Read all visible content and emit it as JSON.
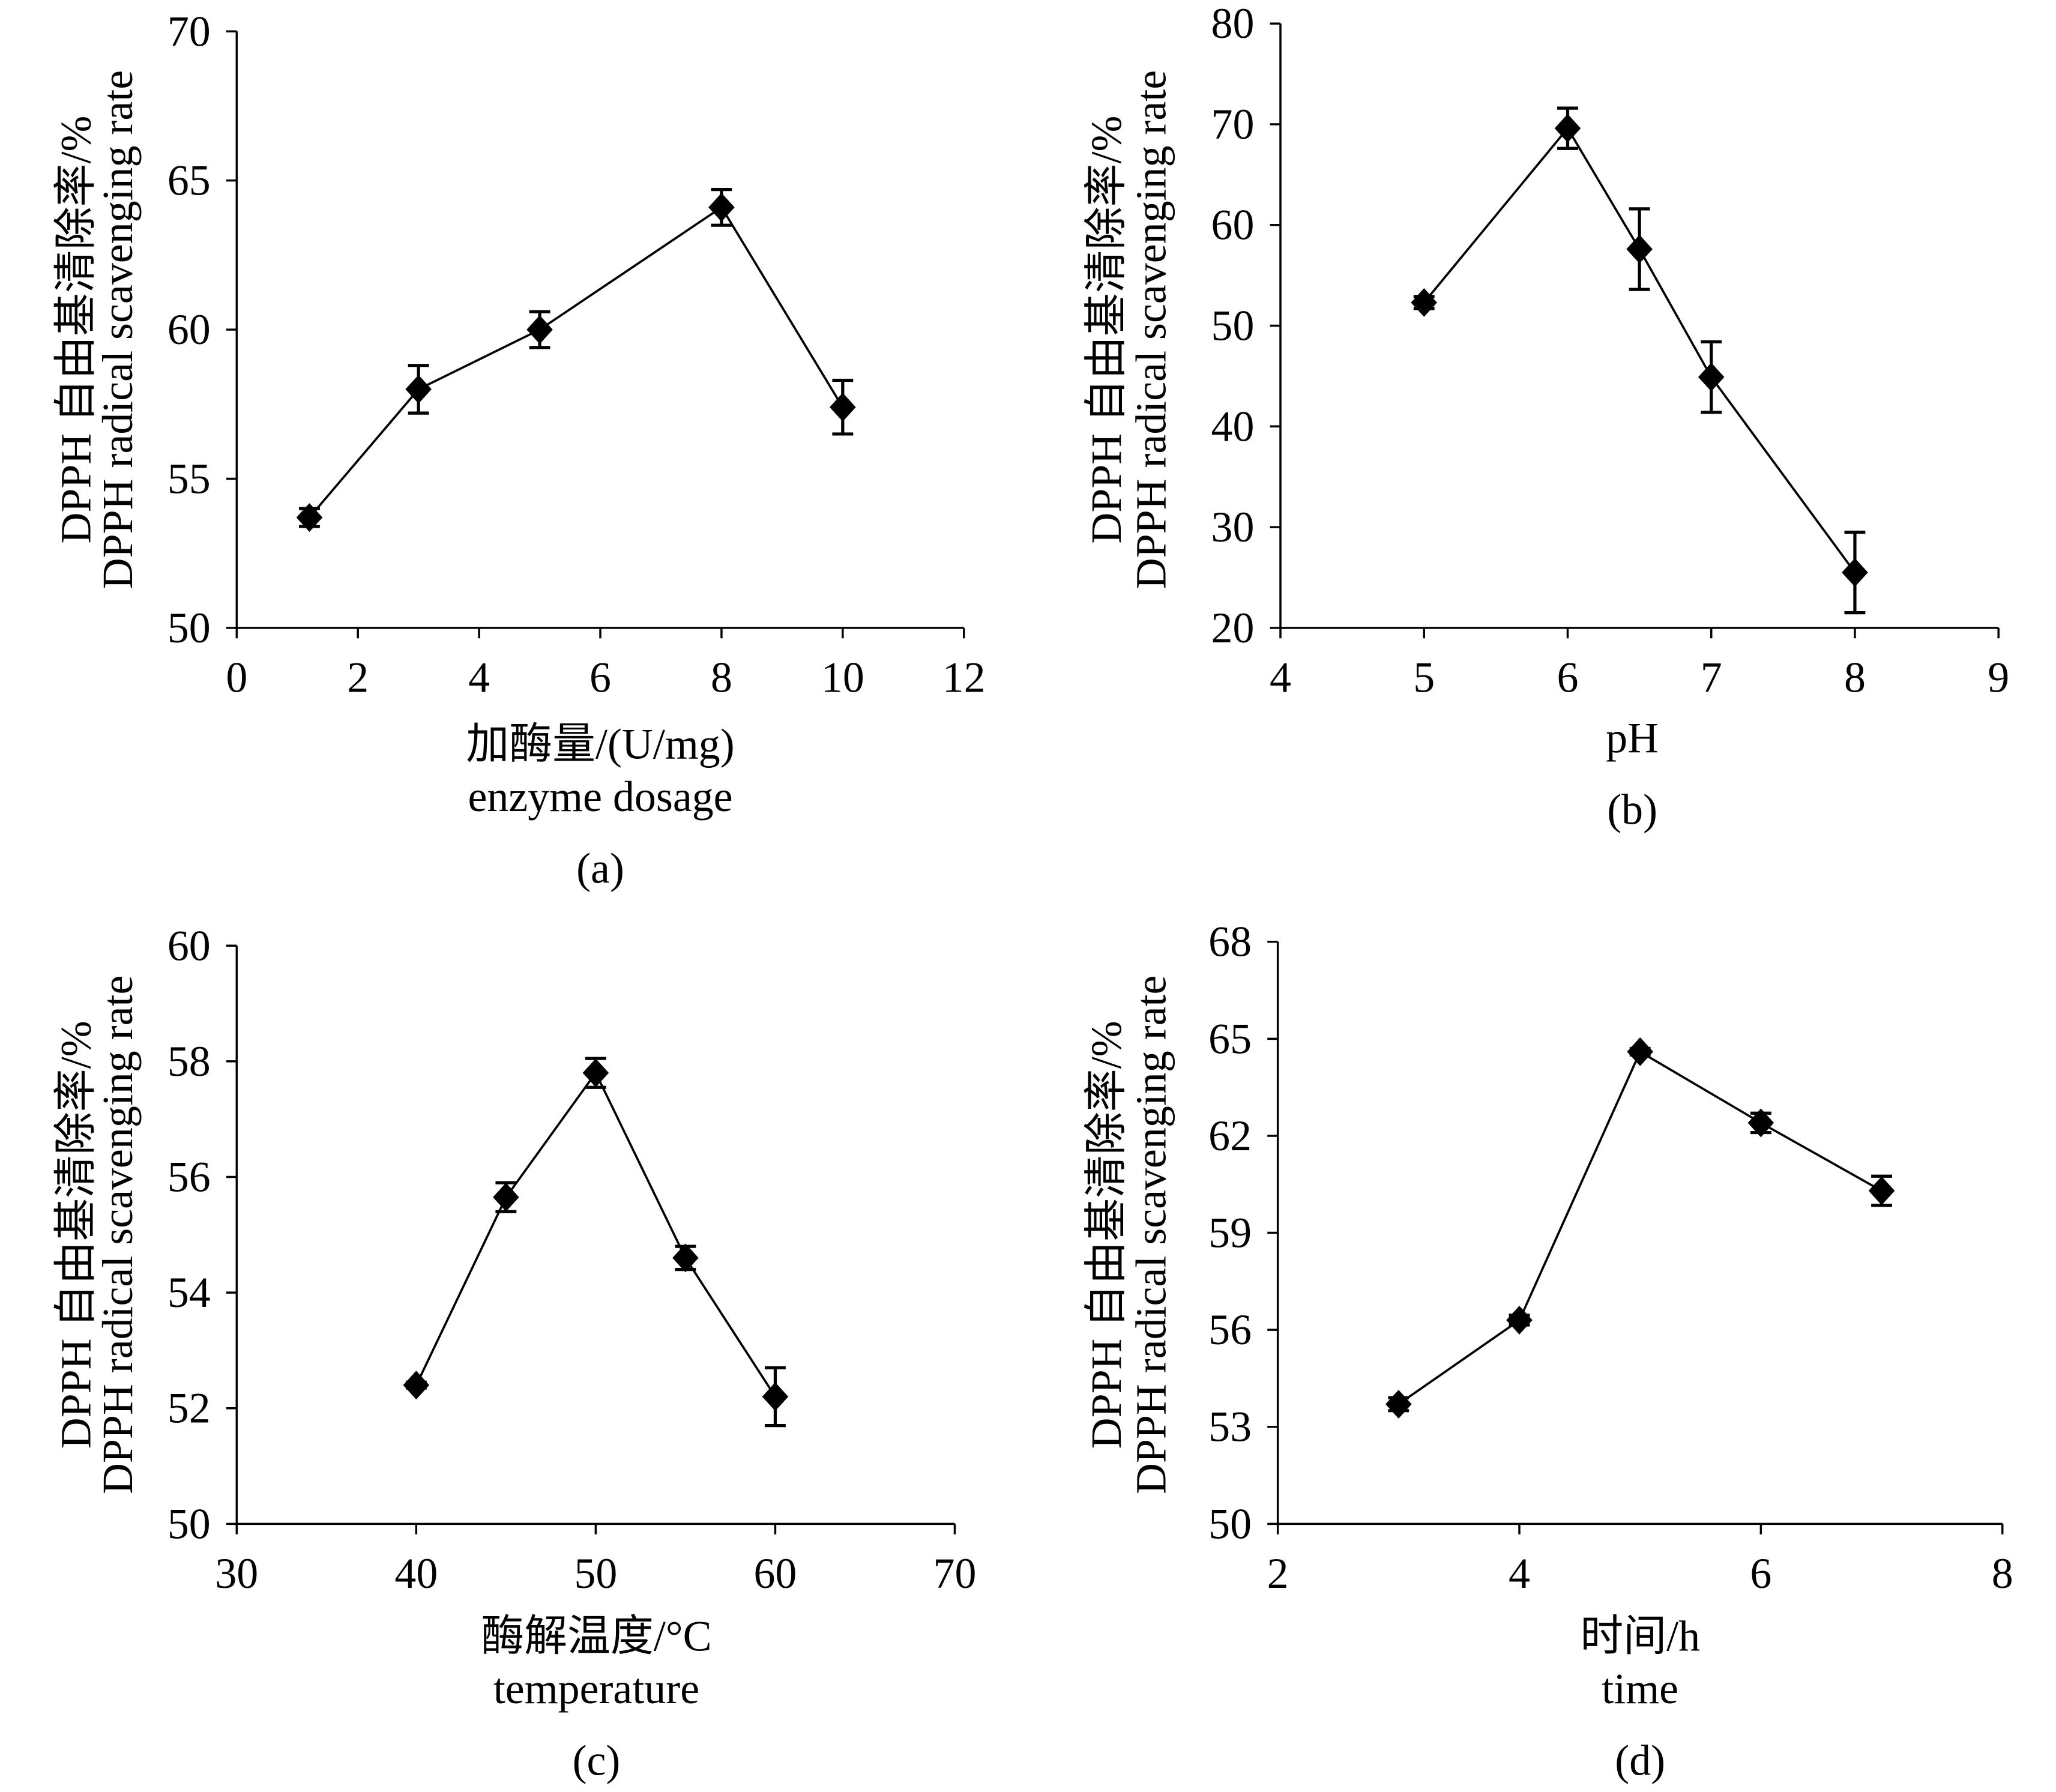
{
  "chart_data": [
    {
      "type": "line",
      "panel_label": "(a)",
      "xlabel": [
        "加酶量/(U/mg)",
        "enzyme dosage"
      ],
      "ylabel": [
        "DPPH 自由基清除率/%",
        "DPPH radical scavenging rate"
      ],
      "xlim": [
        0,
        12
      ],
      "xticks": [
        0,
        2,
        4,
        6,
        8,
        10,
        12
      ],
      "ylim": [
        50,
        70
      ],
      "yticks": [
        50,
        55,
        60,
        65,
        70
      ],
      "grid": false,
      "series": [
        {
          "x": [
            1.2,
            3,
            5,
            8,
            10
          ],
          "y": [
            53.7,
            58.0,
            60.0,
            64.1,
            57.4
          ],
          "error": [
            0.3,
            0.8,
            0.6,
            0.6,
            0.9
          ],
          "marker": "diamond",
          "color": "#000000"
        }
      ]
    },
    {
      "type": "line",
      "panel_label": "(b)",
      "xlabel": [
        "pH"
      ],
      "ylabel": [
        "DPPH 自由基清除率/%",
        "DPPH radical scavenging rate"
      ],
      "xlim": [
        4,
        9
      ],
      "xticks": [
        4,
        5,
        6,
        7,
        8,
        9
      ],
      "ylim": [
        20,
        80
      ],
      "yticks": [
        20,
        30,
        40,
        50,
        60,
        70,
        80
      ],
      "grid": false,
      "series": [
        {
          "x": [
            5,
            6,
            6.5,
            7,
            8
          ],
          "y": [
            52.3,
            69.6,
            57.6,
            44.9,
            25.5
          ],
          "error": [
            0.6,
            2.0,
            4.0,
            3.5,
            4.0
          ],
          "marker": "diamond",
          "color": "#000000"
        }
      ]
    },
    {
      "type": "line",
      "panel_label": "(c)",
      "xlabel": [
        "酶解温度/°C",
        "temperature"
      ],
      "ylabel": [
        "DPPH 自由基清除率/%",
        "DPPH radical scavenging rate"
      ],
      "xlim": [
        30,
        70
      ],
      "xticks": [
        30,
        40,
        50,
        60,
        70
      ],
      "ylim": [
        50,
        60
      ],
      "yticks": [
        50,
        52,
        54,
        56,
        58,
        60
      ],
      "grid": false,
      "series": [
        {
          "x": [
            40,
            45,
            50,
            55,
            60
          ],
          "y": [
            52.4,
            55.65,
            57.8,
            54.6,
            52.2
          ],
          "error": [
            0.05,
            0.25,
            0.25,
            0.2,
            0.5
          ],
          "marker": "diamond",
          "color": "#000000"
        }
      ]
    },
    {
      "type": "line",
      "panel_label": "(d)",
      "xlabel": [
        "时间/h",
        "time"
      ],
      "ylabel": [
        "DPPH 自由基清除率/%",
        "DPPH radical scavenging rate"
      ],
      "xlim": [
        2,
        8
      ],
      "xticks": [
        2,
        4,
        6,
        8
      ],
      "ylim": [
        50,
        68
      ],
      "yticks": [
        50,
        53,
        56,
        59,
        62,
        65,
        68
      ],
      "grid": false,
      "series": [
        {
          "x": [
            3,
            4,
            5,
            6,
            7
          ],
          "y": [
            53.7,
            56.3,
            64.6,
            62.4,
            60.3
          ],
          "error": [
            0.2,
            0.15,
            0.1,
            0.3,
            0.45
          ],
          "marker": "diamond",
          "color": "#000000"
        }
      ]
    }
  ]
}
